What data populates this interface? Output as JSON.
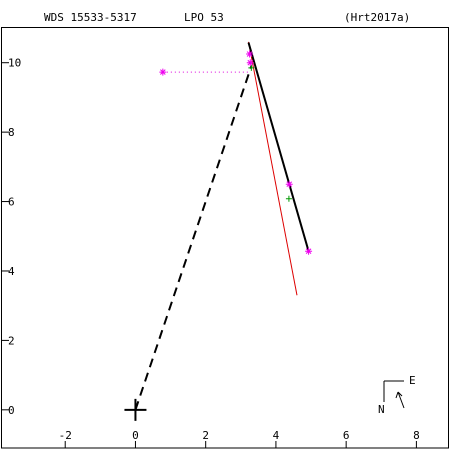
{
  "header": {
    "designation": "WDS 15533-5317",
    "method": "LPO  53",
    "reference": "(Hrt2017a)"
  },
  "chart_data": {
    "type": "scatter",
    "xlim": [
      -3.8,
      8.9
    ],
    "ylim": [
      -1.1,
      11.0
    ],
    "x_ticks": [
      -2,
      0,
      2,
      4,
      6,
      8
    ],
    "y_ticks": [
      0,
      2,
      4,
      6,
      8,
      10
    ],
    "x_tick_labels": [
      "-2",
      "0",
      "2",
      "4",
      "6",
      "8"
    ],
    "y_tick_labels": [
      "0",
      "2",
      "4",
      "6",
      "8",
      "10"
    ],
    "primary": [
      0,
      0
    ],
    "solid_track": [
      [
        3.22,
        10.58
      ],
      [
        4.93,
        4.57
      ]
    ],
    "red_track": [
      [
        3.22,
        10.6
      ],
      [
        4.6,
        3.3
      ]
    ],
    "dashed_line": [
      [
        0,
        0
      ],
      [
        3.3,
        9.9
      ]
    ],
    "dotted_line": [
      [
        0.78,
        9.73
      ],
      [
        3.25,
        9.73
      ]
    ],
    "magenta_points": [
      [
        0.78,
        9.73
      ],
      [
        3.25,
        10.25
      ],
      [
        3.27,
        10.0
      ],
      [
        4.38,
        6.5
      ],
      [
        4.93,
        4.57
      ]
    ],
    "green_points": [
      [
        3.3,
        9.85
      ],
      [
        4.37,
        6.08
      ]
    ],
    "colors": {
      "track": "#000000",
      "prediction": "#dd0000",
      "observed": "#ee00ee",
      "predicted": "#009900",
      "guide": "#dd00dd"
    },
    "legend": {
      "position": "bottom-right",
      "east_label": "E",
      "north_label": "N"
    }
  }
}
